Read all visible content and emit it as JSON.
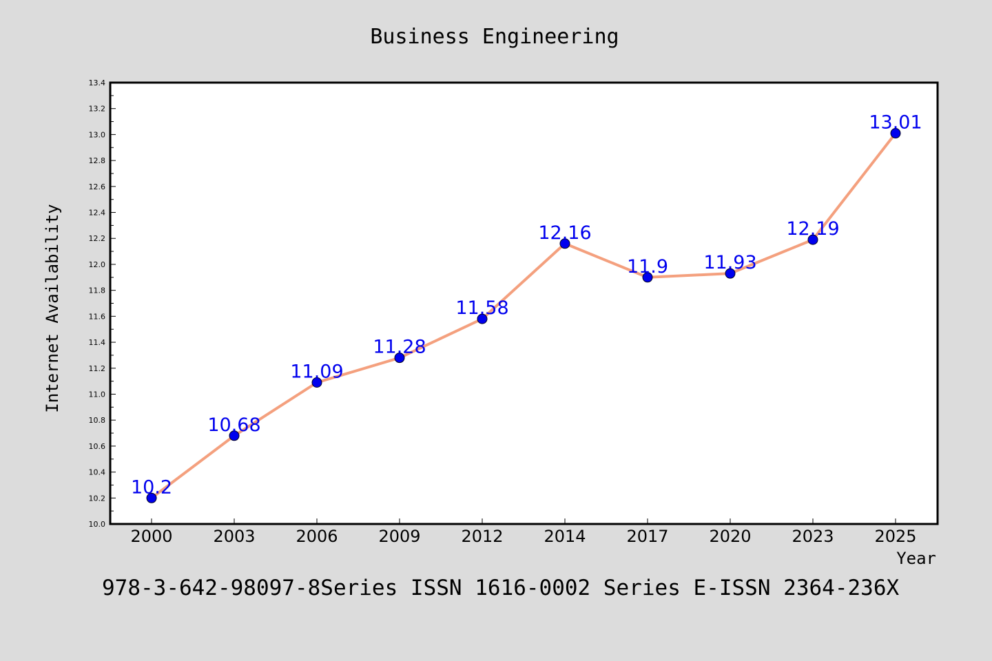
{
  "chart_data": {
    "type": "line",
    "title": "Business Engineering",
    "xlabel": "Year",
    "ylabel": "Internet Availability",
    "categories": [
      "2000",
      "2003",
      "2006",
      "2009",
      "2012",
      "2014",
      "2017",
      "2020",
      "2023",
      "2025"
    ],
    "series": [
      {
        "values": [
          10.2,
          10.68,
          11.09,
          11.28,
          11.58,
          12.16,
          11.9,
          11.93,
          12.19,
          13.01
        ],
        "labels": [
          "10.2",
          "10.68",
          "11.09",
          "11.28",
          "11.58",
          "12.16",
          "11.9",
          "11.93",
          "12.19",
          "13.01"
        ],
        "line_color": "#f4a07e",
        "marker_color": "#0000ee"
      }
    ],
    "ylim": [
      10.0,
      13.4
    ],
    "y_ticks": [
      "10.0",
      "10.2",
      "10.4",
      "10.6",
      "10.8",
      "11.0",
      "11.2",
      "11.4",
      "11.6",
      "11.8",
      "12.0",
      "12.2",
      "12.4",
      "12.6",
      "12.8",
      "13.0",
      "13.2",
      "13.4"
    ],
    "grid": false,
    "legend": "none"
  },
  "footer": "978-3-642-98097-8Series ISSN 1616-0002 Series E-ISSN 2364-236X",
  "colors": {
    "background": "#dcdcdc",
    "plot_background": "#ffffff",
    "frame": "#000000"
  }
}
